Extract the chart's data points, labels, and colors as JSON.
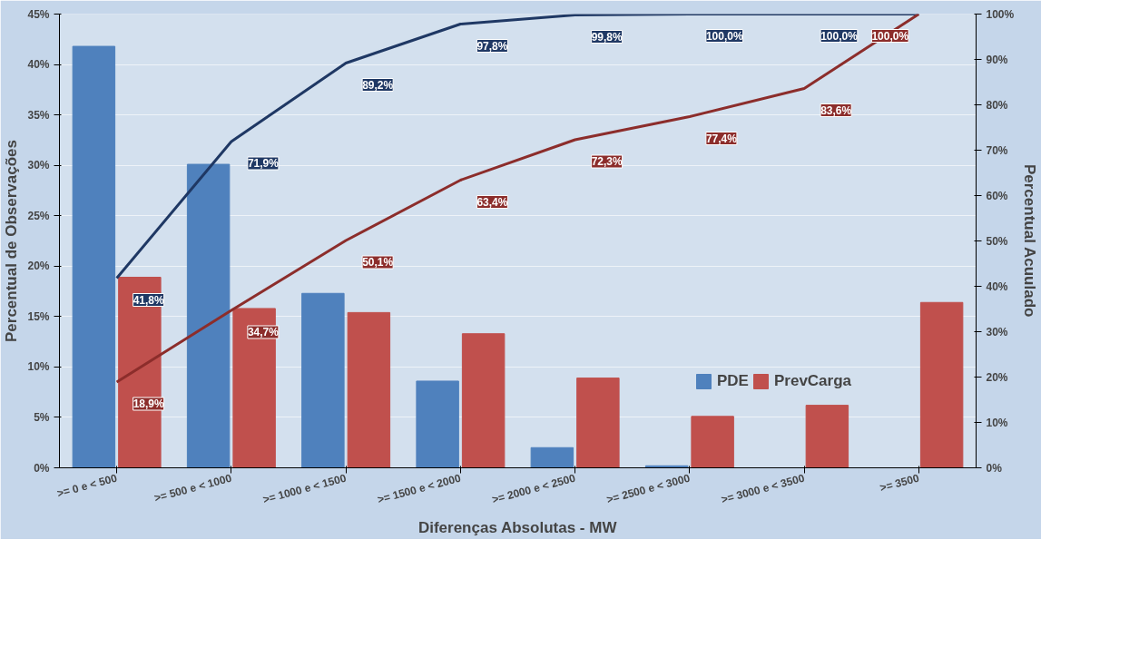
{
  "chart_data": {
    "type": "bar",
    "xlabel": "Diferenças Absolutas - MW",
    "ylabel": "Percentual de Observações",
    "y2label": "Percentual Acuulado",
    "categories": [
      ">= 0 e < 500",
      ">= 500 e < 1000",
      ">= 1000 e < 1500",
      ">= 1500 e < 2000",
      ">= 2000 e < 2500",
      ">= 2500 e < 3000",
      ">= 3000 e < 3500",
      ">= 3500"
    ],
    "series": [
      {
        "name": "PDE",
        "color": "#4f81bd",
        "values": [
          41.8,
          30.1,
          17.3,
          8.6,
          2.0,
          0.2,
          0,
          0
        ]
      },
      {
        "name": "PrevCarga",
        "color": "#c0504d",
        "values": [
          18.9,
          15.8,
          15.4,
          13.3,
          8.9,
          5.1,
          6.2,
          16.4
        ]
      },
      {
        "type": "line",
        "axis": "y2",
        "color": "#1f3864",
        "values": [
          41.8,
          71.9,
          89.2,
          97.8,
          99.8,
          100.0,
          100.0,
          100.0
        ],
        "value_labels": [
          "41,8%",
          "71,9%",
          "89,2%",
          "97,8%",
          "99,8%",
          "100,0%",
          "100,0%",
          null
        ]
      },
      {
        "type": "line",
        "axis": "y2",
        "color": "#8c2d2b",
        "values": [
          18.9,
          34.7,
          50.1,
          63.4,
          72.3,
          77.4,
          83.6,
          100.0
        ],
        "value_labels": [
          "18,9%",
          "34,7%",
          "50,1%",
          "63,4%",
          "72,3%",
          "77,4%",
          "83,6%",
          "100,0%"
        ]
      }
    ],
    "ylim": [
      0,
      45
    ],
    "yticks": [
      {
        "value": 0,
        "label": "0%"
      },
      {
        "value": 5,
        "label": "5%"
      },
      {
        "value": 10,
        "label": "10%"
      },
      {
        "value": 15,
        "label": "15%"
      },
      {
        "value": 20,
        "label": "20%"
      },
      {
        "value": 25,
        "label": "25%"
      },
      {
        "value": 30,
        "label": "30%"
      },
      {
        "value": 35,
        "label": "35%"
      },
      {
        "value": 40,
        "label": "40%"
      },
      {
        "value": 45,
        "label": "45%"
      }
    ],
    "y2lim": [
      0,
      100
    ],
    "y2ticks": [
      {
        "value": 0,
        "label": "0%"
      },
      {
        "value": 10,
        "label": "10%"
      },
      {
        "value": 20,
        "label": "20%"
      },
      {
        "value": 30,
        "label": "30%"
      },
      {
        "value": 40,
        "label": "40%"
      },
      {
        "value": 50,
        "label": "50%"
      },
      {
        "value": 60,
        "label": "60%"
      },
      {
        "value": 70,
        "label": "70%"
      },
      {
        "value": 80,
        "label": "80%"
      },
      {
        "value": 90,
        "label": "90%"
      },
      {
        "value": 100,
        "label": "100%"
      }
    ],
    "grid": "y",
    "legend": "bottom right",
    "marker": "none",
    "line_style": "solid"
  }
}
